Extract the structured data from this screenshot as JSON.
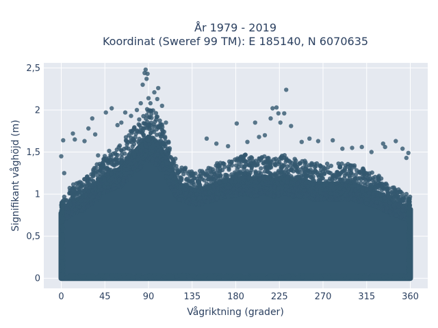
{
  "chart_data": {
    "type": "scatter",
    "title_line1": "År 1979 - 2019",
    "title_line2": "Koordinat (Sweref 99 TM): E 185140, N 6070635",
    "xlabel": "Vågriktning (grader)",
    "ylabel": "Signifikant våghöjd (m)",
    "xlim": [
      -18,
      378
    ],
    "ylim": [
      -0.12,
      2.56
    ],
    "xticks": [
      0,
      45,
      90,
      135,
      180,
      225,
      270,
      315,
      360
    ],
    "xtick_labels": [
      "0",
      "45",
      "90",
      "135",
      "180",
      "225",
      "270",
      "315",
      "360"
    ],
    "yticks": [
      0,
      0.5,
      1,
      1.5,
      2,
      2.5
    ],
    "ytick_labels": [
      "0",
      "0,5",
      "1",
      "1,5",
      "2",
      "2,5"
    ],
    "grid": true,
    "marker_color": "#33586f",
    "background_color": "#e5e9f0",
    "envelope": {
      "x": [
        0,
        10,
        20,
        30,
        40,
        50,
        60,
        70,
        80,
        90,
        100,
        110,
        120,
        130,
        140,
        150,
        160,
        170,
        180,
        190,
        200,
        210,
        220,
        230,
        240,
        250,
        260,
        270,
        280,
        290,
        300,
        310,
        320,
        330,
        340,
        350,
        360
      ],
      "ymax": [
        0.9,
        1.05,
        1.1,
        1.2,
        1.35,
        1.45,
        1.5,
        1.65,
        1.8,
        1.95,
        1.85,
        1.6,
        1.3,
        1.25,
        1.2,
        1.25,
        1.3,
        1.35,
        1.35,
        1.4,
        1.35,
        1.4,
        1.35,
        1.4,
        1.35,
        1.35,
        1.3,
        1.3,
        1.3,
        1.3,
        1.3,
        1.25,
        1.2,
        1.15,
        1.05,
        1.0,
        0.95
      ]
    },
    "outliers": [
      {
        "x": 0,
        "y": 1.45
      },
      {
        "x": 2,
        "y": 1.64
      },
      {
        "x": 3,
        "y": 1.25
      },
      {
        "x": 12,
        "y": 1.72
      },
      {
        "x": 14,
        "y": 1.65
      },
      {
        "x": 24,
        "y": 1.63
      },
      {
        "x": 28,
        "y": 1.78
      },
      {
        "x": 32,
        "y": 1.9
      },
      {
        "x": 35,
        "y": 1.71
      },
      {
        "x": 38,
        "y": 1.46
      },
      {
        "x": 46,
        "y": 1.97
      },
      {
        "x": 52,
        "y": 2.02
      },
      {
        "x": 58,
        "y": 1.82
      },
      {
        "x": 62,
        "y": 1.85
      },
      {
        "x": 66,
        "y": 1.97
      },
      {
        "x": 72,
        "y": 1.93
      },
      {
        "x": 78,
        "y": 2.0
      },
      {
        "x": 82,
        "y": 2.08
      },
      {
        "x": 84,
        "y": 2.3
      },
      {
        "x": 86,
        "y": 2.44
      },
      {
        "x": 87,
        "y": 2.48
      },
      {
        "x": 89,
        "y": 2.43
      },
      {
        "x": 88,
        "y": 2.37
      },
      {
        "x": 90,
        "y": 2.14
      },
      {
        "x": 92,
        "y": 2.08
      },
      {
        "x": 96,
        "y": 2.21
      },
      {
        "x": 99,
        "y": 2.13
      },
      {
        "x": 100,
        "y": 2.26
      },
      {
        "x": 104,
        "y": 2.05
      },
      {
        "x": 108,
        "y": 1.85
      },
      {
        "x": 150,
        "y": 1.66
      },
      {
        "x": 160,
        "y": 1.6
      },
      {
        "x": 172,
        "y": 1.57
      },
      {
        "x": 181,
        "y": 1.84
      },
      {
        "x": 192,
        "y": 1.62
      },
      {
        "x": 200,
        "y": 1.85
      },
      {
        "x": 204,
        "y": 1.68
      },
      {
        "x": 210,
        "y": 1.7
      },
      {
        "x": 216,
        "y": 1.9
      },
      {
        "x": 218,
        "y": 2.02
      },
      {
        "x": 222,
        "y": 2.03
      },
      {
        "x": 224,
        "y": 1.96
      },
      {
        "x": 226,
        "y": 1.85
      },
      {
        "x": 230,
        "y": 1.96
      },
      {
        "x": 232,
        "y": 2.24
      },
      {
        "x": 237,
        "y": 1.81
      },
      {
        "x": 248,
        "y": 1.62
      },
      {
        "x": 256,
        "y": 1.66
      },
      {
        "x": 265,
        "y": 1.63
      },
      {
        "x": 280,
        "y": 1.64
      },
      {
        "x": 290,
        "y": 1.54
      },
      {
        "x": 300,
        "y": 1.55
      },
      {
        "x": 310,
        "y": 1.56
      },
      {
        "x": 320,
        "y": 1.5
      },
      {
        "x": 332,
        "y": 1.6
      },
      {
        "x": 334,
        "y": 1.56
      },
      {
        "x": 345,
        "y": 1.63
      },
      {
        "x": 352,
        "y": 1.54
      },
      {
        "x": 356,
        "y": 1.43
      },
      {
        "x": 358,
        "y": 1.49
      }
    ]
  }
}
